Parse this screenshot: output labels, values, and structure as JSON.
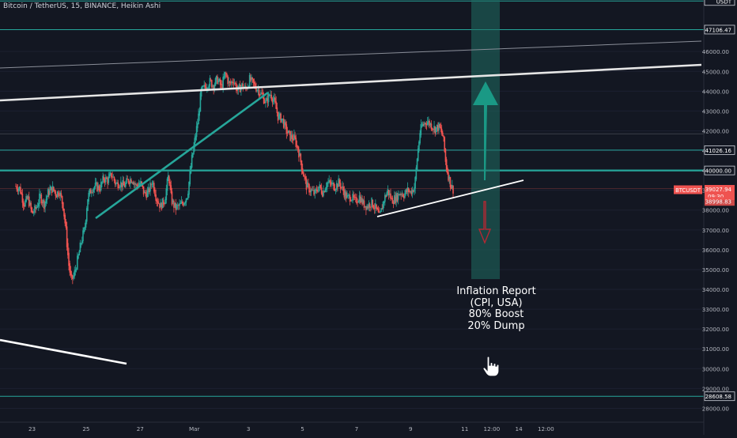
{
  "header": {
    "title": "Bitcoin / TetherUS, 15, BINANCE, Heikin Ashi"
  },
  "chart_data": {
    "type": "candlestick",
    "symbol": "BTCUSDT",
    "ylim": [
      27300,
      48600
    ],
    "y_ticks": [
      "46000.00",
      "45000.00",
      "44000.00",
      "43000.00",
      "42000.00",
      "41000.00",
      "40000.00",
      "39000.00",
      "38000.00",
      "37000.00",
      "36000.00",
      "35000.00",
      "34000.00",
      "33000.00",
      "32000.00",
      "31000.00",
      "30000.00",
      "29000.00",
      "28000.00"
    ],
    "x_ticks": [
      {
        "label": "23",
        "x": 0.6
      },
      {
        "label": "25",
        "x": 2.6
      },
      {
        "label": "27",
        "x": 4.6
      },
      {
        "label": "Mar",
        "x": 6.6
      },
      {
        "label": "3",
        "x": 8.6
      },
      {
        "label": "5",
        "x": 10.6
      },
      {
        "label": "7",
        "x": 12.6
      },
      {
        "label": "9",
        "x": 14.6
      },
      {
        "label": "11",
        "x": 16.6
      },
      {
        "label": "12:00",
        "x": 17.6
      },
      {
        "label": "14",
        "x": 18.6
      },
      {
        "label": "12:00",
        "x": 19.6
      }
    ],
    "horizontal_levels": [
      {
        "label": "USDT",
        "value": 48550,
        "color": "#26a69a",
        "shape": "box"
      },
      {
        "label": "47106.47",
        "value": 47106.47,
        "color": "#26a69a",
        "shape": "box"
      },
      {
        "label": "41026.16",
        "value": 41026.16,
        "color": "#26a69a",
        "shape": "box"
      },
      {
        "label": "40000.00",
        "value": 40000,
        "color": "#26a69a",
        "shape": "box"
      },
      {
        "label": "28608.58",
        "value": 28608.58,
        "color": "#26a69a",
        "shape": "box"
      }
    ],
    "price_tag": {
      "symbol": "BTCUSDT",
      "price": "39027.94",
      "countdown": "09:30",
      "value": 39027.94,
      "color": "#ef5350"
    },
    "last_price_tag": {
      "price": "38998.83",
      "value": 38998.83,
      "color": "#ef5350"
    },
    "price_path": [
      [
        0,
        39200
      ],
      [
        0.15,
        39100
      ],
      [
        0.3,
        38300
      ],
      [
        0.45,
        38600
      ],
      [
        0.6,
        37800
      ],
      [
        0.75,
        38100
      ],
      [
        0.9,
        38700
      ],
      [
        1.05,
        38300
      ],
      [
        1.2,
        38900
      ],
      [
        1.35,
        39100
      ],
      [
        1.5,
        38800
      ],
      [
        1.6,
        39000
      ],
      [
        1.75,
        38200
      ],
      [
        1.85,
        37000
      ],
      [
        1.95,
        35300
      ],
      [
        2.05,
        34400
      ],
      [
        2.15,
        34700
      ],
      [
        2.3,
        35600
      ],
      [
        2.45,
        36600
      ],
      [
        2.55,
        37100
      ],
      [
        2.65,
        38600
      ],
      [
        2.8,
        39100
      ],
      [
        2.95,
        39200
      ],
      [
        3.1,
        39100
      ],
      [
        3.25,
        39600
      ],
      [
        3.4,
        39500
      ],
      [
        3.55,
        39800
      ],
      [
        3.7,
        39300
      ],
      [
        3.85,
        39400
      ],
      [
        4.0,
        39200
      ],
      [
        4.15,
        39500
      ],
      [
        4.3,
        39600
      ],
      [
        4.45,
        39200
      ],
      [
        4.6,
        39400
      ],
      [
        4.75,
        38800
      ],
      [
        4.9,
        38900
      ],
      [
        5.05,
        39500
      ],
      [
        5.2,
        38600
      ],
      [
        5.35,
        38200
      ],
      [
        5.5,
        38500
      ],
      [
        5.65,
        39800
      ],
      [
        5.75,
        38500
      ],
      [
        5.9,
        38100
      ],
      [
        6.05,
        38200
      ],
      [
        6.2,
        38400
      ],
      [
        6.35,
        38800
      ],
      [
        6.5,
        40500
      ],
      [
        6.65,
        41800
      ],
      [
        6.75,
        42700
      ],
      [
        6.85,
        44000
      ],
      [
        7.0,
        44200
      ],
      [
        7.15,
        44500
      ],
      [
        7.3,
        44300
      ],
      [
        7.45,
        44600
      ],
      [
        7.6,
        44200
      ],
      [
        7.75,
        44900
      ],
      [
        7.9,
        44300
      ],
      [
        8.05,
        44600
      ],
      [
        8.2,
        44000
      ],
      [
        8.35,
        44300
      ],
      [
        8.5,
        44100
      ],
      [
        8.65,
        44600
      ],
      [
        8.8,
        44300
      ],
      [
        8.95,
        44100
      ],
      [
        9.1,
        43800
      ],
      [
        9.25,
        43400
      ],
      [
        9.4,
        43900
      ],
      [
        9.55,
        43500
      ],
      [
        9.7,
        42700
      ],
      [
        9.85,
        42600
      ],
      [
        10.0,
        42000
      ],
      [
        10.15,
        41700
      ],
      [
        10.3,
        41600
      ],
      [
        10.45,
        41000
      ],
      [
        10.6,
        40000
      ],
      [
        10.75,
        39200
      ],
      [
        10.9,
        39000
      ],
      [
        11.05,
        38800
      ],
      [
        11.2,
        39200
      ],
      [
        11.35,
        38900
      ],
      [
        11.5,
        39400
      ],
      [
        11.65,
        39300
      ],
      [
        11.8,
        39200
      ],
      [
        11.95,
        39400
      ],
      [
        12.1,
        39000
      ],
      [
        12.25,
        38600
      ],
      [
        12.4,
        38700
      ],
      [
        12.55,
        38400
      ],
      [
        12.7,
        38700
      ],
      [
        12.85,
        38300
      ],
      [
        13.0,
        38200
      ],
      [
        13.15,
        38400
      ],
      [
        13.3,
        38100
      ],
      [
        13.45,
        37600
      ],
      [
        13.6,
        38500
      ],
      [
        13.75,
        39000
      ],
      [
        13.9,
        38500
      ],
      [
        14.05,
        38600
      ],
      [
        14.2,
        38900
      ],
      [
        14.35,
        38800
      ],
      [
        14.5,
        39000
      ],
      [
        14.6,
        38900
      ],
      [
        14.75,
        39200
      ],
      [
        14.85,
        40800
      ],
      [
        14.95,
        42000
      ],
      [
        15.05,
        42300
      ],
      [
        15.2,
        42500
      ],
      [
        15.35,
        42300
      ],
      [
        15.5,
        42100
      ],
      [
        15.65,
        42200
      ],
      [
        15.8,
        41700
      ],
      [
        15.9,
        40300
      ],
      [
        16.0,
        39700
      ],
      [
        16.1,
        39200
      ],
      [
        16.2,
        39000
      ]
    ]
  },
  "annotation": {
    "lines": [
      "Inflation Report",
      "(CPI, USA)",
      "80% Boost",
      "20% Dump"
    ]
  },
  "colors": {
    "background": "#131722",
    "up": "#26a69a",
    "down": "#ef5350",
    "trendline": "#26a69a",
    "white_line": "#ffffff",
    "green_arrow": "#1a9985",
    "red_arrow": "#b22833",
    "axis_text": "#b2b5be"
  },
  "icons": {
    "cursor": "hand-pointer-icon"
  }
}
